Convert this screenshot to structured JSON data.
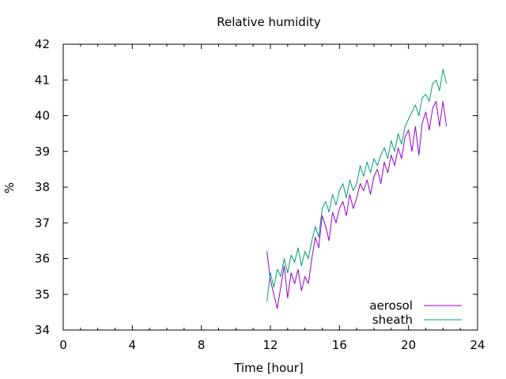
{
  "chart_data": {
    "type": "line",
    "title": "Relative humidity",
    "xlabel": "Time [hour]",
    "ylabel": "%",
    "xlim": [
      0,
      24
    ],
    "ylim": [
      34,
      42
    ],
    "x_ticks": [
      0,
      4,
      8,
      12,
      16,
      20,
      24
    ],
    "y_ticks": [
      34,
      35,
      36,
      37,
      38,
      39,
      40,
      41,
      42
    ],
    "x_tick_labels": [
      "0",
      "4",
      "8",
      "12",
      "16",
      "20",
      "24"
    ],
    "y_tick_labels": [
      "34",
      "35",
      "36",
      "37",
      "38",
      "39",
      "40",
      "41",
      "42"
    ],
    "legend_position": "bottom-right",
    "grid": false,
    "series": [
      {
        "name": "aerosol",
        "color": "#9400d3",
        "x": [
          11.8,
          12.0,
          12.2,
          12.4,
          12.6,
          12.8,
          13.0,
          13.2,
          13.4,
          13.6,
          13.8,
          14.0,
          14.2,
          14.4,
          14.6,
          14.8,
          15.0,
          15.2,
          15.4,
          15.6,
          15.8,
          16.0,
          16.2,
          16.4,
          16.6,
          16.8,
          17.0,
          17.2,
          17.4,
          17.6,
          17.8,
          18.0,
          18.2,
          18.4,
          18.6,
          18.8,
          19.0,
          19.2,
          19.4,
          19.6,
          19.8,
          20.0,
          20.2,
          20.4,
          20.6,
          20.8,
          21.0,
          21.2,
          21.4,
          21.6,
          21.8,
          22.0,
          22.2
        ],
        "y": [
          36.2,
          35.4,
          35.0,
          34.6,
          35.2,
          35.8,
          34.9,
          35.6,
          35.3,
          35.7,
          35.1,
          35.5,
          35.3,
          36.0,
          36.6,
          36.3,
          37.2,
          36.9,
          36.5,
          37.3,
          37.0,
          37.4,
          37.6,
          37.2,
          37.8,
          37.4,
          37.7,
          38.1,
          37.9,
          38.2,
          37.8,
          38.3,
          38.5,
          38.1,
          38.7,
          38.4,
          38.9,
          38.6,
          39.1,
          38.8,
          39.4,
          39.6,
          39.0,
          39.7,
          38.9,
          39.8,
          40.1,
          39.6,
          40.2,
          40.4,
          39.7,
          40.4,
          39.7
        ]
      },
      {
        "name": "sheath",
        "color": "#009e73",
        "x": [
          11.8,
          12.0,
          12.2,
          12.4,
          12.6,
          12.8,
          13.0,
          13.2,
          13.4,
          13.6,
          13.8,
          14.0,
          14.2,
          14.4,
          14.6,
          14.8,
          15.0,
          15.2,
          15.4,
          15.6,
          15.8,
          16.0,
          16.2,
          16.4,
          16.6,
          16.8,
          17.0,
          17.2,
          17.4,
          17.6,
          17.8,
          18.0,
          18.2,
          18.4,
          18.6,
          18.8,
          19.0,
          19.2,
          19.4,
          19.6,
          19.8,
          20.0,
          20.2,
          20.4,
          20.6,
          20.8,
          21.0,
          21.2,
          21.4,
          21.6,
          21.8,
          22.0,
          22.2
        ],
        "y": [
          34.8,
          35.6,
          35.2,
          35.7,
          35.5,
          36.0,
          35.6,
          36.1,
          35.9,
          36.3,
          35.8,
          36.2,
          36.0,
          36.5,
          36.9,
          36.6,
          37.4,
          37.6,
          37.3,
          37.8,
          37.5,
          37.9,
          38.1,
          37.7,
          38.2,
          37.9,
          38.1,
          38.6,
          38.3,
          38.7,
          38.4,
          38.8,
          38.6,
          38.9,
          39.1,
          38.8,
          39.3,
          39.0,
          39.5,
          39.2,
          39.7,
          39.9,
          40.1,
          40.3,
          40.0,
          40.5,
          40.6,
          40.4,
          40.9,
          41.0,
          40.7,
          41.3,
          40.9
        ]
      }
    ]
  }
}
